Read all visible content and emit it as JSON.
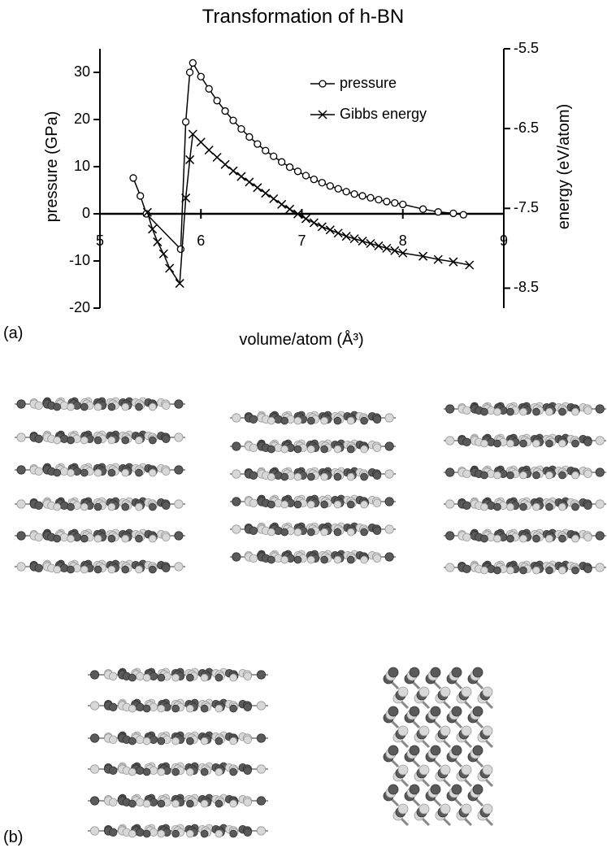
{
  "chart_data": {
    "type": "line",
    "title": "Transformation of h-BN",
    "xlabel": "volume/atom (Å³)",
    "ylabel": "pressure (GPa)",
    "y2label": "energy (eV/atom)",
    "xlim": [
      5,
      9
    ],
    "xticks": [
      5,
      6,
      7,
      8,
      9
    ],
    "ylim": [
      -20,
      35
    ],
    "yticks": [
      -20,
      -10,
      0,
      10,
      20,
      30
    ],
    "y2lim": [
      -8.75,
      -5.5
    ],
    "y2ticks": [
      -8.5,
      -7.5,
      -6.5,
      -5.5
    ],
    "legend": "upper right",
    "series": [
      {
        "name": "pressure",
        "color": "#000000",
        "marker": "circle",
        "x": [
          5.33,
          5.4,
          5.46,
          5.8,
          5.85,
          5.89,
          5.92,
          6.0,
          6.08,
          6.16,
          6.24,
          6.32,
          6.4,
          6.48,
          6.56,
          6.64,
          6.72,
          6.8,
          6.88,
          6.96,
          7.04,
          7.12,
          7.2,
          7.28,
          7.36,
          7.44,
          7.52,
          7.6,
          7.68,
          7.76,
          7.84,
          7.92,
          8.0,
          8.2,
          8.35,
          8.5,
          8.6
        ],
        "values": [
          7.6,
          3.8,
          0,
          -7.5,
          19.5,
          30,
          32,
          29.1,
          26.5,
          24.0,
          21.8,
          19.8,
          18.0,
          16.3,
          14.8,
          13.4,
          12.2,
          11.0,
          9.9,
          9.0,
          8.1,
          7.3,
          6.6,
          5.9,
          5.3,
          4.7,
          4.2,
          3.8,
          3.4,
          3.0,
          2.6,
          2.3,
          2.0,
          1.0,
          0.4,
          0.1,
          -0.2
        ]
      },
      {
        "name": "Gibbs energy",
        "color": "#000000",
        "marker": "x",
        "axis": "y2",
        "x": [
          5.47,
          5.52,
          5.57,
          5.63,
          5.69,
          5.79,
          5.85,
          5.89,
          5.92,
          6.0,
          6.08,
          6.16,
          6.24,
          6.32,
          6.4,
          6.48,
          6.56,
          6.64,
          6.72,
          6.8,
          6.88,
          6.96,
          7.04,
          7.12,
          7.2,
          7.28,
          7.36,
          7.44,
          7.52,
          7.6,
          7.68,
          7.76,
          7.84,
          7.92,
          8.0,
          8.2,
          8.35,
          8.5,
          8.66
        ],
        "values": [
          -7.55,
          -7.76,
          -7.92,
          -8.07,
          -8.25,
          -8.44,
          -7.37,
          -6.89,
          -6.57,
          -6.67,
          -6.77,
          -6.86,
          -6.95,
          -7.03,
          -7.1,
          -7.17,
          -7.24,
          -7.31,
          -7.38,
          -7.45,
          -7.51,
          -7.57,
          -7.63,
          -7.68,
          -7.73,
          -7.77,
          -7.81,
          -7.85,
          -7.88,
          -7.91,
          -7.94,
          -7.97,
          -8.0,
          -8.03,
          -8.06,
          -8.1,
          -8.14,
          -8.17,
          -8.21
        ]
      }
    ]
  },
  "panels": {
    "a": "(a)",
    "b": "(b)"
  }
}
